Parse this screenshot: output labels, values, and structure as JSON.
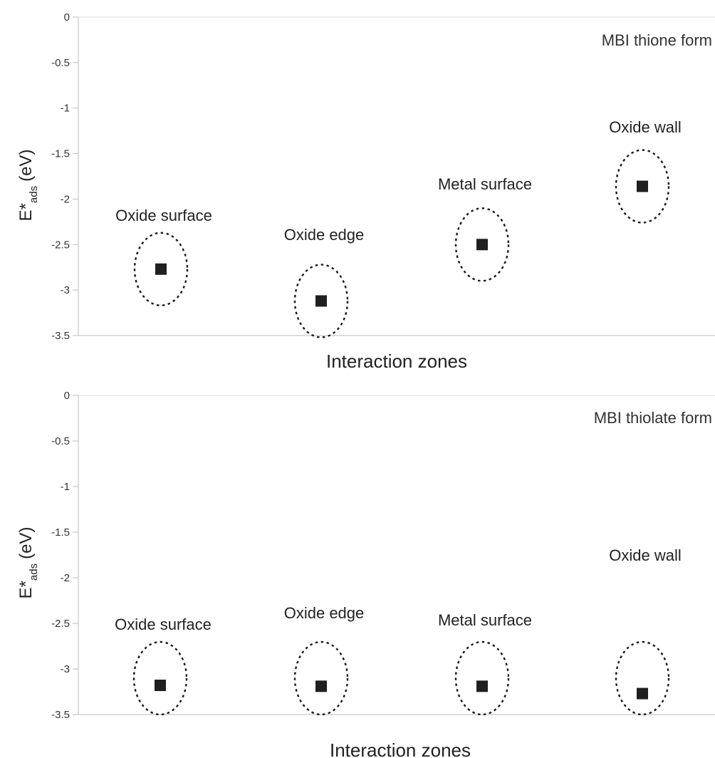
{
  "chart_data": [
    {
      "type": "scatter",
      "title": "MBI thione form",
      "xlabel": "Interaction zones",
      "ylabel": {
        "main": "E*",
        "sub": "ads",
        "unit": "(eV)"
      },
      "ylim": [
        -3.5,
        0
      ],
      "yticks": [
        0,
        -0.5,
        -1,
        -1.5,
        -2,
        -2.5,
        -3,
        -3.5
      ],
      "yticks_labels": [
        "0",
        "-0.5",
        "-1",
        "-1.5",
        "-2",
        "-2.5",
        "-3",
        "-3.5"
      ],
      "categories": [
        "Oxide surface",
        "Oxide edge",
        "Metal surface",
        "Oxide wall"
      ],
      "values": [
        -2.77,
        -3.12,
        -2.5,
        -1.86
      ],
      "grid": false,
      "marker": "square",
      "marker_color": "#1f1f1f"
    },
    {
      "type": "scatter",
      "title": "MBI thiolate form",
      "xlabel": "Interaction zones",
      "ylabel": {
        "main": "E*",
        "sub": "ads",
        "unit": "(eV)"
      },
      "ylim": [
        -3.5,
        0
      ],
      "yticks": [
        0,
        -0.5,
        -1,
        -1.5,
        -2,
        -2.5,
        -3,
        -3.5
      ],
      "yticks_labels": [
        "0",
        "-0.5",
        "-1",
        "-1.5",
        "-2",
        "-2.5",
        "-3",
        "-3.5"
      ],
      "categories": [
        "Oxide surface",
        "Oxide edge",
        "Metal surface",
        "Oxide wall"
      ],
      "values": [
        -3.18,
        -3.19,
        -3.19,
        -3.27
      ],
      "grid": false,
      "marker": "square",
      "marker_color": "#1f1f1f"
    }
  ]
}
